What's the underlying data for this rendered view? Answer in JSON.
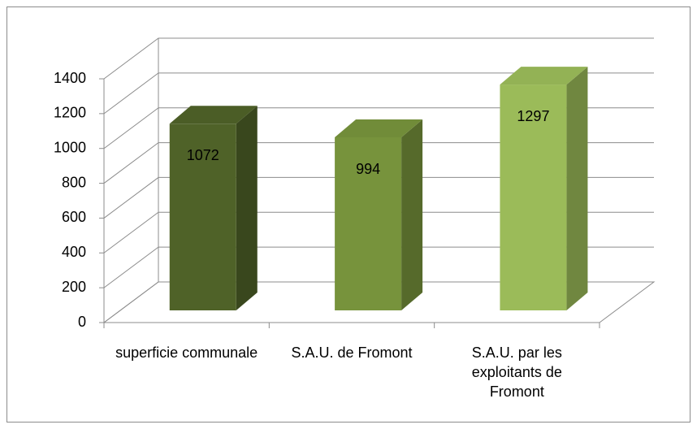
{
  "chart_data": {
    "type": "bar3d",
    "categories": [
      "superficie communale",
      "S.A.U. de Fromont",
      "S.A.U. par les exploitants de Fromont"
    ],
    "values": [
      1072,
      994,
      1297
    ],
    "colors": [
      "#4f6228",
      "#77933c",
      "#9bbb59"
    ],
    "ylim": [
      0,
      1400
    ],
    "yticks": [
      0,
      200,
      400,
      600,
      800,
      1000,
      1200,
      1400
    ],
    "grid": true
  }
}
